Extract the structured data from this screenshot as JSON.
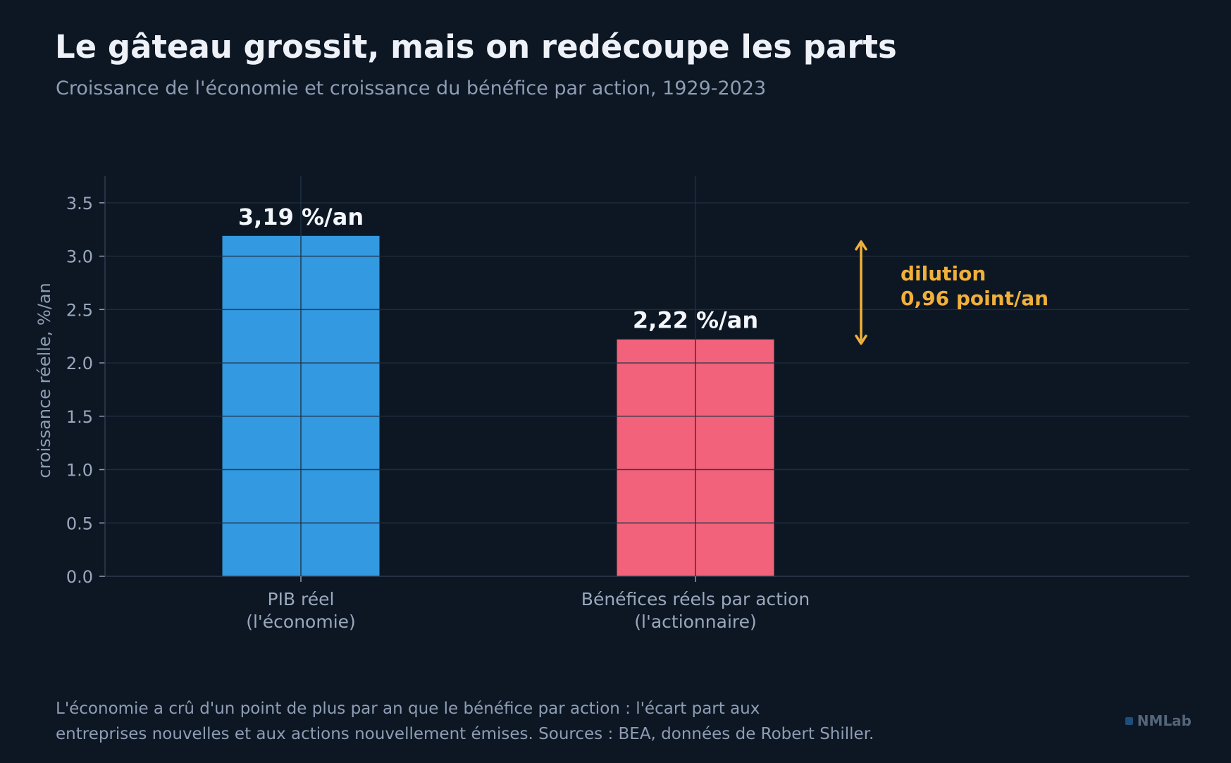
{
  "header": {
    "title": "Le gâteau grossit, mais on redécoupe les parts",
    "subtitle": "Croissance de l'économie et croissance du bénéfice par action, 1929-2023"
  },
  "chart_data": {
    "type": "bar",
    "categories": [
      [
        "PIB réel",
        "(l'économie)"
      ],
      [
        "Bénéfices réels par action",
        "(l'actionnaire)"
      ]
    ],
    "values": [
      3.19,
      2.22
    ],
    "value_labels": [
      "3,19 %/an",
      "2,22 %/an"
    ],
    "colors": [
      "#3399e0",
      "#f2627a"
    ],
    "ylabel": "croissance réelle, %/an",
    "ylim": [
      0,
      3.75
    ],
    "yticks": [
      "0.0",
      "0.5",
      "1.0",
      "1.5",
      "2.0",
      "2.5",
      "3.0",
      "3.5"
    ],
    "grid": true,
    "annotation": {
      "lines": [
        "dilution",
        "0,96 point/an"
      ],
      "from": 2.22,
      "to": 3.19,
      "color": "#f0b03a"
    }
  },
  "footer": {
    "lines": [
      "L'économie a crû d'un point de plus par an que le bénéfice par action : l'écart part aux",
      "entreprises nouvelles et aux actions nouvellement émises. Sources : BEA, données de Robert Shiller."
    ]
  },
  "brand": {
    "name": "NMLab"
  }
}
